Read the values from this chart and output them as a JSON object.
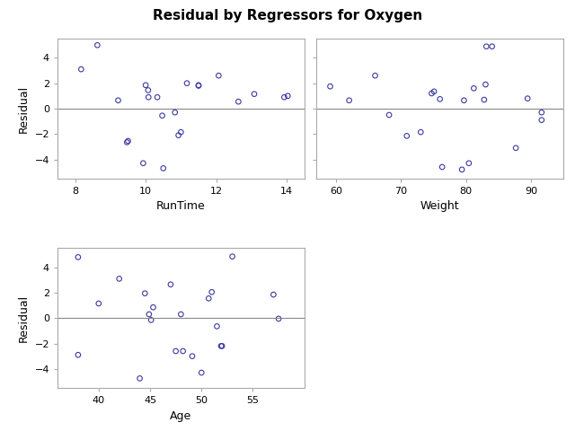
{
  "title": "Residual by Regressors for Oxygen",
  "plots": [
    {
      "xlabel": "RunTime",
      "ylabel": "Residual",
      "xlim": [
        7.5,
        14.5
      ],
      "ylim": [
        -5.5,
        5.5
      ],
      "xticks": [
        8,
        10,
        12,
        14
      ],
      "yticks": [
        -4,
        -2,
        0,
        2,
        4
      ],
      "x": [
        8.17,
        8.63,
        9.22,
        9.47,
        9.5,
        9.93,
        10.0,
        10.07,
        10.08,
        10.33,
        10.47,
        10.5,
        10.83,
        10.93,
        11.0,
        11.17,
        11.5,
        11.5,
        12.07,
        12.63,
        13.08,
        13.93,
        14.03
      ],
      "y": [
        3.1,
        5.0,
        0.65,
        -2.65,
        -2.55,
        -4.3,
        1.85,
        1.45,
        0.9,
        0.9,
        -0.55,
        -4.7,
        -0.3,
        -2.1,
        -1.85,
        2.0,
        1.85,
        1.8,
        2.6,
        0.55,
        1.15,
        0.9,
        1.0
      ],
      "show_yticklabels": true
    },
    {
      "xlabel": "Weight",
      "ylabel": "",
      "xlim": [
        57,
        95
      ],
      "ylim": [
        -5.5,
        5.5
      ],
      "xticks": [
        60,
        70,
        80,
        90
      ],
      "yticks": [
        -4,
        -2,
        0,
        2,
        4
      ],
      "x": [
        59.08,
        62.0,
        66.0,
        68.15,
        70.87,
        73.02,
        74.7,
        75.07,
        75.98,
        76.32,
        79.36,
        79.68,
        80.43,
        81.19,
        82.78,
        83.0,
        83.12,
        84.0,
        87.66,
        89.47,
        91.63,
        91.63
      ],
      "y": [
        1.75,
        0.65,
        2.6,
        -0.5,
        -2.15,
        -1.85,
        1.2,
        1.35,
        0.75,
        -4.6,
        -4.8,
        0.65,
        -4.3,
        1.6,
        0.7,
        1.9,
        4.9,
        4.9,
        -3.1,
        0.8,
        -0.3,
        -0.9
      ],
      "show_yticklabels": false
    },
    {
      "xlabel": "Age",
      "ylabel": "Residual",
      "xlim": [
        36,
        60
      ],
      "ylim": [
        -5.5,
        5.5
      ],
      "xticks": [
        40,
        45,
        50,
        55
      ],
      "yticks": [
        -4,
        -2,
        0,
        2,
        4
      ],
      "x": [
        38.0,
        38.0,
        40.0,
        42.0,
        44.0,
        44.5,
        44.9,
        45.1,
        45.3,
        47.0,
        47.5,
        48.0,
        48.2,
        49.1,
        50.0,
        50.7,
        51.0,
        51.5,
        51.9,
        52.0,
        53.0,
        57.0,
        57.5
      ],
      "y": [
        4.8,
        -2.9,
        1.15,
        3.1,
        -4.75,
        1.95,
        0.3,
        -0.15,
        0.85,
        2.65,
        -2.6,
        0.3,
        -2.6,
        -3.0,
        -4.3,
        1.55,
        2.05,
        -0.65,
        -2.2,
        -2.2,
        4.85,
        1.85,
        -0.05
      ],
      "show_yticklabels": true
    }
  ],
  "marker": "o",
  "marker_color": "#3a3a9f",
  "marker_facecolor": "none",
  "marker_size": 4,
  "line_color": "#888888",
  "bg_color": "#ffffff",
  "plot_bg_color": "#ffffff",
  "spine_color": "#aaaaaa",
  "title_fontsize": 11,
  "label_fontsize": 9,
  "tick_fontsize": 8
}
